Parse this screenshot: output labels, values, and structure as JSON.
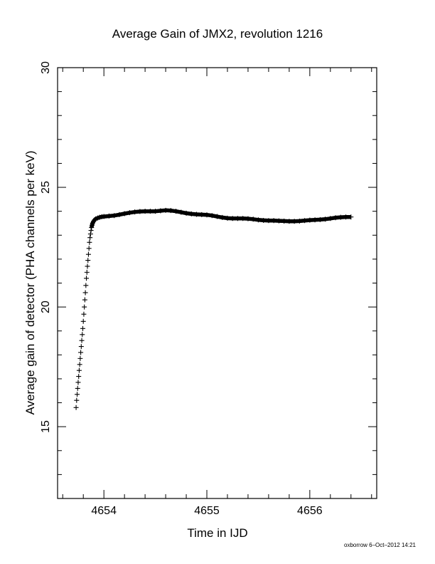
{
  "chart_data": {
    "type": "scatter",
    "title": "Average Gain of JMX2, revolution 1216",
    "xlabel": "Time in IJD",
    "ylabel": "Average gain of detector (PHA channels per keV)",
    "xlim": [
      4653.55,
      4656.65
    ],
    "ylim": [
      12,
      30
    ],
    "x_ticks": [
      4654,
      4655,
      4656
    ],
    "y_ticks": [
      15,
      20,
      25,
      30
    ],
    "x_tick_labels": [
      "4654",
      "4655",
      "4656"
    ],
    "y_tick_labels": [
      "15",
      "20",
      "25",
      "30"
    ],
    "x_minor_step": 0.2,
    "y_minor_step": 1,
    "grid": false,
    "marker": "plus",
    "series": [
      {
        "points": [
          [
            4653.73,
            15.8
          ],
          [
            4653.735,
            16.1
          ],
          [
            4653.74,
            16.35
          ],
          [
            4653.745,
            16.6
          ],
          [
            4653.75,
            16.85
          ],
          [
            4653.755,
            17.1
          ],
          [
            4653.76,
            17.35
          ],
          [
            4653.765,
            17.6
          ],
          [
            4653.77,
            17.85
          ],
          [
            4653.775,
            18.1
          ],
          [
            4653.78,
            18.35
          ],
          [
            4653.785,
            18.6
          ],
          [
            4653.79,
            18.85
          ],
          [
            4653.795,
            19.1
          ],
          [
            4653.8,
            19.4
          ],
          [
            4653.805,
            19.7
          ],
          [
            4653.81,
            20.0
          ],
          [
            4653.815,
            20.3
          ],
          [
            4653.82,
            20.6
          ],
          [
            4653.825,
            20.9
          ],
          [
            4653.83,
            21.2
          ],
          [
            4653.835,
            21.45
          ],
          [
            4653.84,
            21.7
          ],
          [
            4653.845,
            21.95
          ],
          [
            4653.85,
            22.2
          ],
          [
            4653.855,
            22.45
          ],
          [
            4653.86,
            22.7
          ],
          [
            4653.865,
            22.9
          ],
          [
            4653.87,
            23.05
          ],
          [
            4653.875,
            23.2
          ],
          [
            4653.88,
            23.32
          ],
          [
            4653.885,
            23.42
          ],
          [
            4653.89,
            23.5
          ],
          [
            4653.9,
            23.58
          ],
          [
            4653.91,
            23.64
          ],
          [
            4653.92,
            23.68
          ],
          [
            4653.94,
            23.72
          ],
          [
            4653.96,
            23.75
          ],
          [
            4653.98,
            23.77
          ],
          [
            4654.0,
            23.78
          ],
          [
            4654.05,
            23.8
          ],
          [
            4654.1,
            23.82
          ],
          [
            4654.15,
            23.86
          ],
          [
            4654.2,
            23.9
          ],
          [
            4654.25,
            23.94
          ],
          [
            4654.3,
            23.97
          ],
          [
            4654.35,
            23.99
          ],
          [
            4654.4,
            24.0
          ],
          [
            4654.45,
            24.0
          ],
          [
            4654.5,
            24.0
          ],
          [
            4654.55,
            24.02
          ],
          [
            4654.6,
            24.04
          ],
          [
            4654.65,
            24.03
          ],
          [
            4654.7,
            24.0
          ],
          [
            4654.75,
            23.96
          ],
          [
            4654.8,
            23.92
          ],
          [
            4654.85,
            23.89
          ],
          [
            4654.9,
            23.87
          ],
          [
            4654.95,
            23.86
          ],
          [
            4655.0,
            23.85
          ],
          [
            4655.05,
            23.82
          ],
          [
            4655.1,
            23.78
          ],
          [
            4655.15,
            23.74
          ],
          [
            4655.2,
            23.71
          ],
          [
            4655.25,
            23.7
          ],
          [
            4655.3,
            23.7
          ],
          [
            4655.35,
            23.7
          ],
          [
            4655.4,
            23.69
          ],
          [
            4655.45,
            23.67
          ],
          [
            4655.5,
            23.64
          ],
          [
            4655.55,
            23.62
          ],
          [
            4655.6,
            23.61
          ],
          [
            4655.65,
            23.61
          ],
          [
            4655.7,
            23.6
          ],
          [
            4655.75,
            23.59
          ],
          [
            4655.8,
            23.58
          ],
          [
            4655.85,
            23.58
          ],
          [
            4655.9,
            23.59
          ],
          [
            4655.95,
            23.61
          ],
          [
            4656.0,
            23.63
          ],
          [
            4656.05,
            23.64
          ],
          [
            4656.1,
            23.65
          ],
          [
            4656.15,
            23.67
          ],
          [
            4656.2,
            23.7
          ],
          [
            4656.25,
            23.73
          ],
          [
            4656.3,
            23.75
          ],
          [
            4656.35,
            23.76
          ],
          [
            4656.4,
            23.76
          ]
        ]
      }
    ]
  },
  "footer": {
    "credit": "oxborrow  6–Oct–2012 14:21"
  }
}
